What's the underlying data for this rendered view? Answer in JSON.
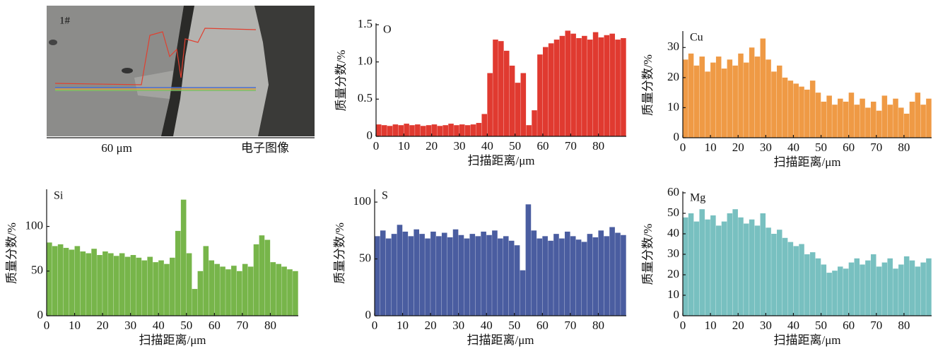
{
  "image": {
    "label": "1#",
    "scale_bar": "60 μm",
    "caption": "电子图像"
  },
  "chart_data": [
    {
      "type": "histogram",
      "label": "O",
      "color": "#e03a30",
      "y_label": "质量分数/%",
      "x_label": "扫描距离/μm",
      "bins": [
        0,
        2,
        4,
        6,
        8,
        10,
        12,
        14,
        16,
        18,
        20,
        22,
        24,
        26,
        28,
        30,
        32,
        34,
        36,
        38,
        40,
        42,
        44,
        46,
        48,
        50,
        52,
        54,
        56,
        58,
        60,
        62,
        64,
        66,
        68,
        70,
        72,
        74,
        76,
        78,
        80,
        82,
        84,
        86,
        88,
        90
      ],
      "values": [
        0.16,
        0.15,
        0.14,
        0.16,
        0.15,
        0.17,
        0.15,
        0.16,
        0.14,
        0.15,
        0.16,
        0.14,
        0.15,
        0.17,
        0.15,
        0.16,
        0.15,
        0.16,
        0.18,
        0.3,
        0.85,
        1.3,
        1.28,
        1.15,
        0.95,
        0.72,
        0.85,
        0.15,
        0.35,
        1.1,
        1.2,
        1.25,
        1.3,
        1.35,
        1.42,
        1.38,
        1.32,
        1.35,
        1.3,
        1.4,
        1.33,
        1.36,
        1.38,
        1.3,
        1.32
      ],
      "xlim": [
        0,
        90
      ],
      "xticks": [
        0,
        10,
        20,
        30,
        40,
        50,
        60,
        70,
        80
      ],
      "ylim": [
        0,
        1.5
      ],
      "yticks": [
        0,
        0.5,
        {
          "value": 1,
          "label": "1.0"
        },
        1.5
      ]
    },
    {
      "type": "histogram",
      "label": "Cu",
      "color": "#ef9a45",
      "y_label": "质量分数/%",
      "x_label": "扫描距离/μm",
      "bins": [
        0,
        2,
        4,
        6,
        8,
        10,
        12,
        14,
        16,
        18,
        20,
        22,
        24,
        26,
        28,
        30,
        32,
        34,
        36,
        38,
        40,
        42,
        44,
        46,
        48,
        50,
        52,
        54,
        56,
        58,
        60,
        62,
        64,
        66,
        68,
        70,
        72,
        74,
        76,
        78,
        80,
        82,
        84,
        86,
        88,
        90
      ],
      "values": [
        26,
        28,
        24,
        27,
        22,
        25,
        27,
        23,
        26,
        24,
        28,
        25,
        30,
        27,
        33,
        26,
        22,
        24,
        20,
        19,
        18,
        17,
        16,
        19,
        15,
        12,
        14,
        11,
        13,
        12,
        15,
        11,
        13,
        10,
        12,
        9,
        14,
        11,
        13,
        10,
        8,
        12,
        15,
        11,
        13
      ],
      "xlim": [
        0,
        90
      ],
      "xticks": [
        0,
        10,
        20,
        30,
        40,
        50,
        60,
        70,
        80
      ],
      "ylim": [
        0,
        35
      ],
      "yticks": [
        0,
        10,
        20,
        30
      ]
    },
    {
      "type": "histogram",
      "label": "Si",
      "color": "#77b54a",
      "y_label": "质量分数/%",
      "x_label": "扫描距离/μm",
      "bins": [
        0,
        2,
        4,
        6,
        8,
        10,
        12,
        14,
        16,
        18,
        20,
        22,
        24,
        26,
        28,
        30,
        32,
        34,
        36,
        38,
        40,
        42,
        44,
        46,
        48,
        50,
        52,
        54,
        56,
        58,
        60,
        62,
        64,
        66,
        68,
        70,
        72,
        74,
        76,
        78,
        80,
        82,
        84,
        86,
        88,
        90
      ],
      "values": [
        82,
        78,
        80,
        76,
        74,
        78,
        72,
        70,
        75,
        68,
        72,
        70,
        67,
        70,
        66,
        68,
        65,
        62,
        66,
        60,
        62,
        58,
        65,
        95,
        130,
        70,
        30,
        50,
        78,
        62,
        58,
        55,
        52,
        56,
        50,
        58,
        55,
        80,
        90,
        85,
        60,
        58,
        55,
        52,
        50
      ],
      "xlim": [
        0,
        90
      ],
      "xticks": [
        0,
        10,
        20,
        30,
        40,
        50,
        60,
        70,
        80
      ],
      "ylim": [
        0,
        140
      ],
      "yticks": [
        0,
        50,
        100
      ]
    },
    {
      "type": "histogram",
      "label": "S",
      "color": "#4a5da0",
      "y_label": "质量分数/%",
      "x_label": "扫描距离/μm",
      "bins": [
        0,
        2,
        4,
        6,
        8,
        10,
        12,
        14,
        16,
        18,
        20,
        22,
        24,
        26,
        28,
        30,
        32,
        34,
        36,
        38,
        40,
        42,
        44,
        46,
        48,
        50,
        52,
        54,
        56,
        58,
        60,
        62,
        64,
        66,
        68,
        70,
        72,
        74,
        76,
        78,
        80,
        82,
        84,
        86,
        88,
        90
      ],
      "values": [
        70,
        75,
        68,
        72,
        80,
        74,
        70,
        76,
        72,
        68,
        74,
        70,
        73,
        69,
        76,
        71,
        68,
        72,
        70,
        74,
        71,
        75,
        68,
        70,
        66,
        62,
        40,
        98,
        75,
        68,
        70,
        66,
        72,
        68,
        74,
        70,
        67,
        65,
        72,
        69,
        75,
        70,
        78,
        73,
        71
      ],
      "xlim": [
        0,
        90
      ],
      "xticks": [
        0,
        10,
        20,
        30,
        40,
        50,
        60,
        70,
        80
      ],
      "ylim": [
        0,
        110
      ],
      "yticks": [
        0,
        50,
        100
      ]
    },
    {
      "type": "histogram",
      "label": "Mg",
      "color": "#78c0c0",
      "y_label": "质量分数/%",
      "x_label": "扫描距离/μm",
      "bins": [
        0,
        2,
        4,
        6,
        8,
        10,
        12,
        14,
        16,
        18,
        20,
        22,
        24,
        26,
        28,
        30,
        32,
        34,
        36,
        38,
        40,
        42,
        44,
        46,
        48,
        50,
        52,
        54,
        56,
        58,
        60,
        62,
        64,
        66,
        68,
        70,
        72,
        74,
        76,
        78,
        80,
        82,
        84,
        86,
        88,
        90
      ],
      "values": [
        48,
        50,
        46,
        52,
        47,
        49,
        44,
        46,
        50,
        52,
        48,
        45,
        47,
        44,
        50,
        43,
        40,
        42,
        38,
        36,
        34,
        35,
        30,
        31,
        28,
        25,
        21,
        22,
        24,
        23,
        26,
        28,
        25,
        27,
        30,
        24,
        26,
        28,
        23,
        25,
        29,
        27,
        24,
        26,
        28
      ],
      "xlim": [
        0,
        90
      ],
      "xticks": [
        0,
        10,
        20,
        30,
        40,
        50,
        60,
        70,
        80
      ],
      "ylim": [
        0,
        60
      ],
      "yticks": [
        0,
        10,
        20,
        30,
        40,
        50,
        60
      ]
    }
  ]
}
